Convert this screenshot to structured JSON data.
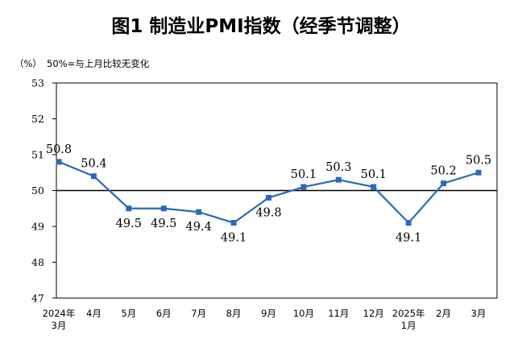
{
  "chart_data": {
    "type": "line",
    "title": "图1  制造业PMI指数（经季节调整）",
    "unit_label": "（%）",
    "note": "50%=与上月比较无变化",
    "ylim": [
      47,
      53
    ],
    "yticks": [
      "53",
      "52",
      "51",
      "50",
      "49",
      "48",
      "47"
    ],
    "reference_line": 50,
    "grid": false,
    "legend": "none",
    "categories": [
      [
        "2024年",
        "3月"
      ],
      [
        "4月"
      ],
      [
        "5月"
      ],
      [
        "6月"
      ],
      [
        "7月"
      ],
      [
        "8月"
      ],
      [
        "9月"
      ],
      [
        "10月"
      ],
      [
        "11月"
      ],
      [
        "12月"
      ],
      [
        "2025年",
        "1月"
      ],
      [
        "2月"
      ],
      [
        "3月"
      ]
    ],
    "series": [
      {
        "values": [
          50.8,
          50.4,
          49.5,
          49.5,
          49.4,
          49.1,
          49.8,
          50.1,
          50.3,
          50.1,
          49.1,
          50.2,
          50.5
        ],
        "labels": [
          "50.8",
          "50.4",
          "49.5",
          "49.5",
          "49.4",
          "49.1",
          "49.8",
          "50.1",
          "50.3",
          "50.1",
          "49.1",
          "50.2",
          "50.5"
        ]
      }
    ],
    "colors": {
      "line": "#2a6ab8",
      "axis": "#000000",
      "reference": "#000000"
    }
  }
}
